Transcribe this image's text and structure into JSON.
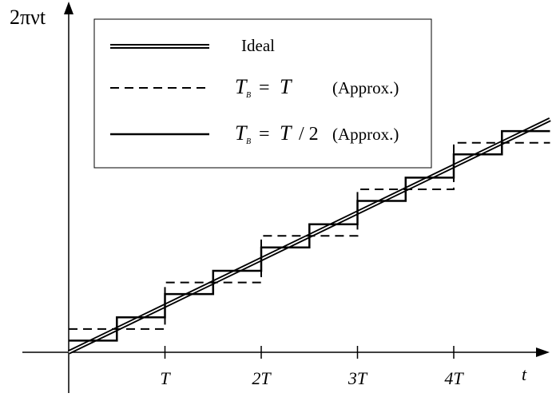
{
  "chart_data": {
    "type": "line",
    "ylabel": "2πνt",
    "xlabel": "t",
    "x_ticks": [
      {
        "value": 1,
        "label": "T"
      },
      {
        "value": 2,
        "label": "2T"
      },
      {
        "value": 3,
        "label": "3T"
      },
      {
        "value": 4,
        "label": "4T"
      }
    ],
    "xlim": [
      0,
      5
    ],
    "ylim": [
      0,
      5
    ],
    "grid": false,
    "legend_position": "top-left",
    "series": [
      {
        "name": "Ideal",
        "style": "double-line",
        "x": [
          0,
          5
        ],
        "y": [
          0,
          5
        ]
      },
      {
        "name": "T_B = T (Approx.)",
        "legend_label": "T_B = T",
        "legend_note": "(Approx.)",
        "style": "dashed-step",
        "x": [
          0,
          1,
          1,
          2,
          2,
          3,
          3,
          4,
          4,
          5
        ],
        "y": [
          0.5,
          0.5,
          1.5,
          1.5,
          2.5,
          2.5,
          3.5,
          3.5,
          4.5,
          4.5
        ]
      },
      {
        "name": "T_B = T / 2 (Approx.)",
        "legend_label": "T_B = T / 2",
        "legend_note": "(Approx.)",
        "style": "solid-step",
        "x": [
          0,
          0.5,
          0.5,
          1,
          1,
          1.5,
          1.5,
          2,
          2,
          2.5,
          2.5,
          3,
          3,
          3.5,
          3.5,
          4,
          4,
          4.5,
          4.5,
          5
        ],
        "y": [
          0.25,
          0.25,
          0.75,
          0.75,
          1.25,
          1.25,
          1.75,
          1.75,
          2.25,
          2.25,
          2.75,
          2.75,
          3.25,
          3.25,
          3.75,
          3.75,
          4.25,
          4.25,
          4.75,
          4.75
        ]
      }
    ]
  },
  "legend": {
    "ideal_label": "Ideal",
    "t_label": "T",
    "b_subscript": "B",
    "equals": "=",
    "half_suffix": "/ 2",
    "approx_note": "(Approx.)"
  }
}
